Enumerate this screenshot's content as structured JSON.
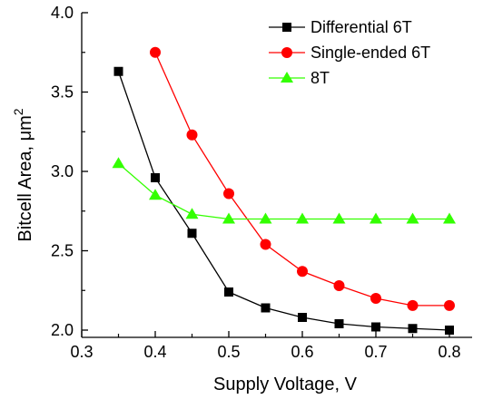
{
  "chart_data": {
    "type": "line",
    "xlabel": "Supply Voltage, V",
    "ylabel_main": "Bitcell Area, ",
    "ylabel_unit": "μm",
    "ylabel_sup": "2",
    "xlim": [
      0.3,
      0.85
    ],
    "ylim": [
      1.95,
      4.0
    ],
    "x_ticks": [
      "0.3",
      "0.4",
      "0.5",
      "0.6",
      "0.7",
      "0.8"
    ],
    "y_ticks": [
      "2.0",
      "2.5",
      "3.0",
      "3.5",
      "4.0"
    ],
    "legend_position": "top-right",
    "grid": false,
    "series": [
      {
        "name": "Differential 6T",
        "color": "#000000",
        "marker": "square",
        "x": [
          0.35,
          0.4,
          0.45,
          0.5,
          0.55,
          0.6,
          0.65,
          0.7,
          0.75,
          0.8
        ],
        "y": [
          3.63,
          2.96,
          2.61,
          2.24,
          2.14,
          2.08,
          2.04,
          2.02,
          2.01,
          2.0
        ]
      },
      {
        "name": "Single-ended 6T",
        "color": "#ff0000",
        "marker": "circle",
        "x": [
          0.4,
          0.45,
          0.5,
          0.55,
          0.6,
          0.65,
          0.7,
          0.75,
          0.8
        ],
        "y": [
          3.75,
          3.23,
          2.86,
          2.54,
          2.37,
          2.28,
          2.2,
          2.155,
          2.155
        ]
      },
      {
        "name": "8T",
        "color": "#33ff00",
        "marker": "triangle",
        "x": [
          0.35,
          0.4,
          0.45,
          0.5,
          0.55,
          0.6,
          0.65,
          0.7,
          0.75,
          0.8
        ],
        "y": [
          3.05,
          2.85,
          2.73,
          2.7,
          2.7,
          2.7,
          2.7,
          2.7,
          2.7,
          2.7
        ]
      }
    ]
  }
}
